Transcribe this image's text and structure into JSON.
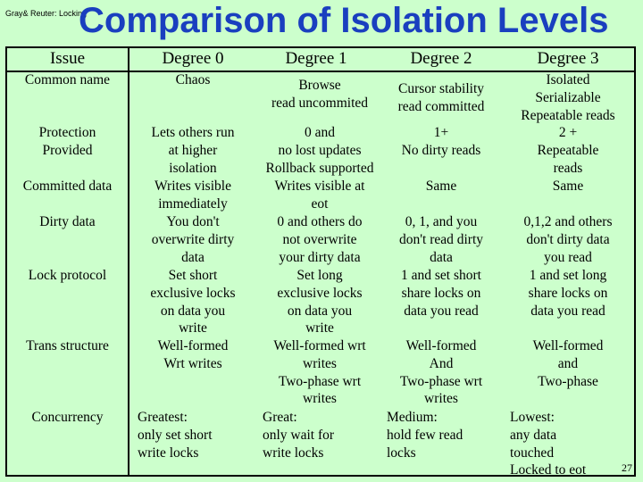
{
  "header": {
    "corner_text": "Gray& Reuter: Locking",
    "title": "Comparison of Isolation Levels"
  },
  "table": {
    "columns": [
      "Issue",
      "Degree 0",
      "Degree 1",
      "Degree 2",
      "Degree 3"
    ],
    "rows": [
      {
        "issue": "Common name",
        "d0": "Chaos",
        "d1": "Browse\nread uncommited",
        "d2": "Cursor stability\nread committed",
        "d3": "Isolated\nSerializable\nRepeatable reads"
      },
      {
        "issue": "Protection\nProvided",
        "d0": "Lets others run\nat higher\nisolation",
        "d1": "0 and\nno lost updates\nRollback supported",
        "d2": "1+\nNo dirty reads",
        "d3": "2 +\nRepeatable\nreads"
      },
      {
        "issue": "Committed data",
        "d0": "Writes visible\nimmediately",
        "d1": "Writes visible at\neot",
        "d2": "Same",
        "d3": "Same"
      },
      {
        "issue": "Dirty data",
        "d0": "You don't\noverwrite dirty\ndata",
        "d1": "0 and others do\nnot overwrite\nyour dirty data",
        "d2": "0, 1, and you\ndon't read dirty\ndata",
        "d3": "0,1,2 and others\ndon't dirty data\nyou read"
      },
      {
        "issue": "Lock protocol",
        "d0": "Set short\nexclusive locks\non data you\nwrite",
        "d1": "Set long\nexclusive locks\non data you\nwrite",
        "d2": "1 and set short\nshare locks on\ndata you read",
        "d3": "1 and set long\nshare locks on\ndata you read"
      },
      {
        "issue": "Trans structure",
        "d0": "Well-formed\nWrt writes",
        "d1": "Well-formed wrt\nwrites\nTwo-phase wrt\nwrites",
        "d2": "Well-formed\nAnd\nTwo-phase wrt\nwrites",
        "d3": "Well-formed\nand\nTwo-phase"
      },
      {
        "issue": "Concurrency",
        "d0": "Greatest:\n  only set short\n  write locks",
        "d1": "Great:\n  only wait for\n  write locks",
        "d2": "Medium:\n  hold few read\n  locks",
        "d3": "Lowest:\n any data\ntouched\nLocked to eot"
      }
    ]
  },
  "footer": {
    "page_number": "27"
  }
}
